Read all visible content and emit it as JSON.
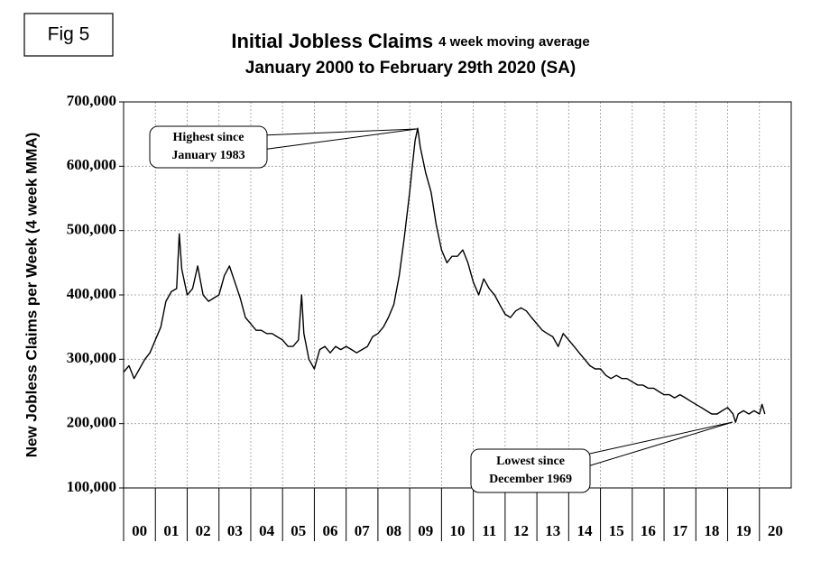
{
  "chart_data": {
    "type": "line",
    "figure_label": "Fig 5",
    "title": "Initial Jobless Claims",
    "title_note": "4 week moving average",
    "subtitle": "January 2000 to February 29th 2020 (SA)",
    "y_label": "New Jobless Claims per Week (4 week MMA)",
    "categories": [
      "00",
      "01",
      "02",
      "03",
      "04",
      "05",
      "06",
      "07",
      "08",
      "09",
      "10",
      "11",
      "12",
      "13",
      "14",
      "15",
      "16",
      "17",
      "18",
      "19",
      "20"
    ],
    "xlim": [
      0,
      21
    ],
    "ylim": [
      100000,
      700000
    ],
    "yticks": [
      {
        "value": 100000,
        "label": "100,000"
      },
      {
        "value": 200000,
        "label": "200,000"
      },
      {
        "value": 300000,
        "label": "300,000"
      },
      {
        "value": 400000,
        "label": "400,000"
      },
      {
        "value": 500000,
        "label": "500,000"
      },
      {
        "value": 600000,
        "label": "600,000"
      },
      {
        "value": 700000,
        "label": "700,000"
      }
    ],
    "grid": true,
    "color": "#000000",
    "x": [
      0,
      0.17,
      0.33,
      0.5,
      0.67,
      0.83,
      1,
      1.17,
      1.33,
      1.5,
      1.67,
      1.75,
      1.83,
      2,
      2.17,
      2.33,
      2.5,
      2.67,
      2.83,
      3,
      3.17,
      3.33,
      3.5,
      3.67,
      3.83,
      4,
      4.17,
      4.33,
      4.5,
      4.67,
      4.83,
      5,
      5.17,
      5.33,
      5.5,
      5.6,
      5.67,
      5.83,
      6,
      6.17,
      6.33,
      6.5,
      6.67,
      6.83,
      7,
      7.17,
      7.33,
      7.5,
      7.67,
      7.83,
      8,
      8.17,
      8.33,
      8.5,
      8.67,
      8.83,
      9,
      9.08,
      9.17,
      9.25,
      9.33,
      9.5,
      9.67,
      9.83,
      10,
      10.17,
      10.33,
      10.5,
      10.67,
      10.83,
      11,
      11.17,
      11.33,
      11.5,
      11.67,
      11.83,
      12,
      12.17,
      12.33,
      12.5,
      12.67,
      12.83,
      13,
      13.17,
      13.33,
      13.5,
      13.67,
      13.83,
      14,
      14.17,
      14.33,
      14.5,
      14.67,
      14.83,
      15,
      15.17,
      15.33,
      15.5,
      15.67,
      15.83,
      16,
      16.17,
      16.33,
      16.5,
      16.67,
      16.83,
      17,
      17.17,
      17.33,
      17.5,
      17.67,
      17.83,
      18,
      18.17,
      18.33,
      18.5,
      18.67,
      18.83,
      19,
      19.17,
      19.25,
      19.33,
      19.5,
      19.67,
      19.83,
      20,
      20.08,
      20.17
    ],
    "values": [
      280000,
      290000,
      270000,
      285000,
      300000,
      310000,
      330000,
      350000,
      390000,
      405000,
      410000,
      495000,
      440000,
      400000,
      410000,
      445000,
      400000,
      390000,
      395000,
      400000,
      430000,
      445000,
      420000,
      395000,
      365000,
      355000,
      345000,
      345000,
      340000,
      340000,
      335000,
      330000,
      320000,
      320000,
      330000,
      400000,
      340000,
      300000,
      285000,
      315000,
      320000,
      310000,
      320000,
      315000,
      320000,
      315000,
      310000,
      315000,
      320000,
      335000,
      340000,
      350000,
      365000,
      385000,
      430000,
      490000,
      560000,
      600000,
      640000,
      659000,
      630000,
      590000,
      560000,
      510000,
      470000,
      450000,
      460000,
      460000,
      470000,
      450000,
      420000,
      400000,
      425000,
      410000,
      400000,
      385000,
      370000,
      365000,
      375000,
      380000,
      375000,
      365000,
      355000,
      345000,
      340000,
      335000,
      320000,
      340000,
      330000,
      320000,
      310000,
      300000,
      290000,
      285000,
      285000,
      275000,
      270000,
      275000,
      270000,
      270000,
      265000,
      260000,
      260000,
      255000,
      255000,
      250000,
      245000,
      245000,
      240000,
      245000,
      240000,
      235000,
      230000,
      225000,
      220000,
      215000,
      215000,
      220000,
      225000,
      215000,
      202000,
      215000,
      220000,
      215000,
      220000,
      215000,
      230000,
      215000
    ],
    "annotations": [
      {
        "text": [
          "Highest since",
          "January 1983"
        ]
      },
      {
        "text": [
          "Lowest since",
          "December 1969"
        ]
      }
    ]
  }
}
